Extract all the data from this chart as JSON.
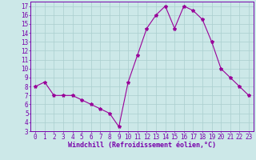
{
  "x": [
    0,
    1,
    2,
    3,
    4,
    5,
    6,
    7,
    8,
    9,
    10,
    11,
    12,
    13,
    14,
    15,
    16,
    17,
    18,
    19,
    20,
    21,
    22,
    23
  ],
  "y": [
    8.0,
    8.5,
    7.0,
    7.0,
    7.0,
    6.5,
    6.0,
    5.5,
    5.0,
    3.5,
    8.5,
    11.5,
    14.5,
    16.0,
    17.0,
    14.5,
    17.0,
    16.5,
    15.5,
    13.0,
    10.0,
    9.0,
    8.0,
    7.0
  ],
  "line_color": "#990099",
  "marker": "*",
  "marker_size": 3,
  "bg_color": "#cce8e8",
  "grid_color": "#aacece",
  "xlabel": "Windchill (Refroidissement éolien,°C)",
  "xlabel_fontsize": 6.0,
  "tick_fontsize": 5.5,
  "xlim": [
    -0.5,
    23.5
  ],
  "ylim": [
    3,
    17.5
  ],
  "yticks": [
    3,
    4,
    5,
    6,
    7,
    8,
    9,
    10,
    11,
    12,
    13,
    14,
    15,
    16,
    17
  ],
  "xticks": [
    0,
    1,
    2,
    3,
    4,
    5,
    6,
    7,
    8,
    9,
    10,
    11,
    12,
    13,
    14,
    15,
    16,
    17,
    18,
    19,
    20,
    21,
    22,
    23
  ],
  "spine_color": "#7700aa",
  "tick_color": "#7700aa",
  "label_color": "#7700aa"
}
